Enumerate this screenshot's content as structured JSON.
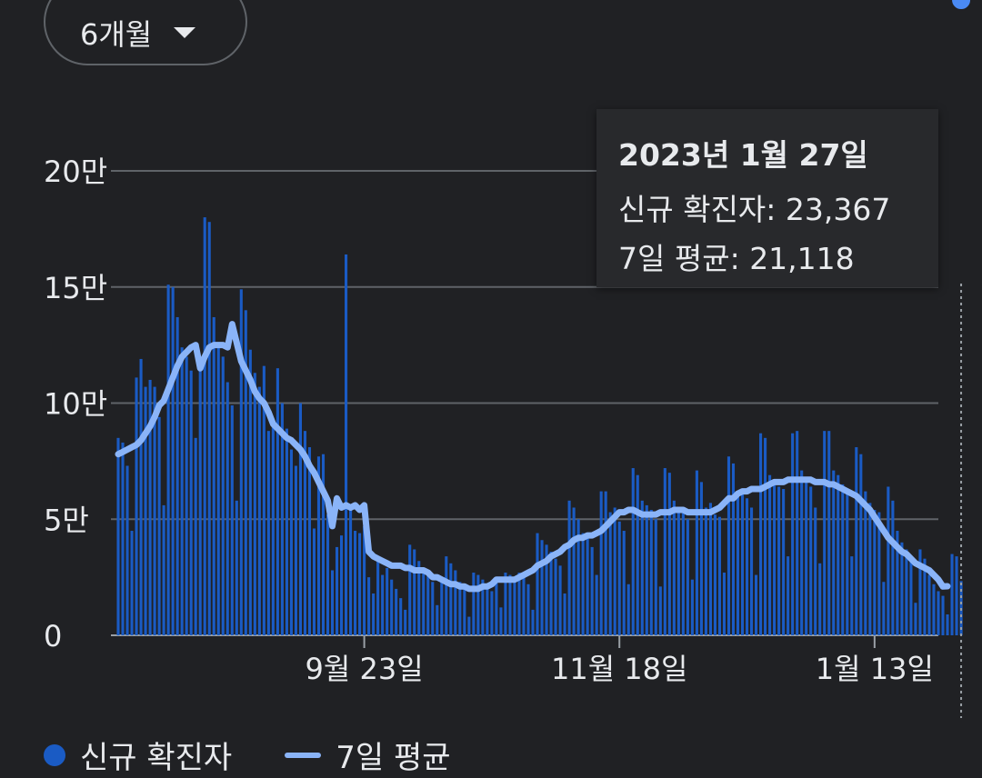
{
  "range_selector": {
    "label": "6개월"
  },
  "tooltip": {
    "date": "2023년 1월 27일",
    "cases_label": "신규 확진자: ",
    "cases_value": "23,367",
    "avg_label": "7일 평균: ",
    "avg_value": "21,118"
  },
  "legend": {
    "cases": "신규 확진자",
    "average": "7일 평균"
  },
  "colors": {
    "bar": "#1a5bc4",
    "line": "#8ab4f8",
    "grid": "#5f6368",
    "background": "#202124"
  },
  "chart_data": {
    "type": "bar",
    "start_date": "2022-07-31",
    "end_date": "2023-01-27",
    "ylim": [
      0,
      200000
    ],
    "y_ticks": [
      {
        "value": 0,
        "label": "0"
      },
      {
        "value": 50000,
        "label": "5만"
      },
      {
        "value": 100000,
        "label": "10만"
      },
      {
        "value": 150000,
        "label": "15만"
      },
      {
        "value": 200000,
        "label": "20만"
      }
    ],
    "x_ticks": [
      {
        "date": "2022-09-23",
        "label": "9월 23일"
      },
      {
        "date": "2022-11-18",
        "label": "11월 18일"
      },
      {
        "date": "2023-01-13",
        "label": "1월 13일"
      }
    ],
    "series": [
      {
        "name": "신규 확진자",
        "type": "bar",
        "values": [
          85000,
          83000,
          73000,
          45000,
          111000,
          119000,
          107000,
          110000,
          107000,
          94000,
          56000,
          151000,
          150000,
          137000,
          124000,
          120000,
          114000,
          85000,
          119000,
          180000,
          178000,
          137000,
          126000,
          120000,
          109000,
          99000,
          58000,
          149000,
          140000,
          123000,
          113000,
          107000,
          116000,
          88000,
          90000,
          115000,
          100000,
          89000,
          80000,
          73000,
          100000,
          88000,
          81000,
          46000,
          77000,
          78000,
          52000,
          28000,
          38000,
          43000,
          164000,
          56000,
          45000,
          44000,
          47000,
          25000,
          18000,
          33000,
          26000,
          29000,
          24000,
          20000,
          16000,
          11000,
          39000,
          37000,
          32000,
          27000,
          27000,
          23000,
          13000,
          23000,
          34000,
          31000,
          28000,
          23000,
          21000,
          8000,
          27000,
          26000,
          24000,
          21000,
          19000,
          25000,
          12000,
          27000,
          26000,
          25000,
          27000,
          27000,
          22000,
          11000,
          44000,
          41000,
          39000,
          36000,
          33000,
          30000,
          18000,
          58000,
          55000,
          50000,
          44000,
          42000,
          38000,
          26000,
          62000,
          62000,
          53000,
          55000,
          49000,
          45000,
          22000,
          72000,
          69000,
          58000,
          56000,
          54000,
          50000,
          21000,
          72000,
          70000,
          58000,
          53000,
          55000,
          50000,
          24000,
          71000,
          66000,
          55000,
          57000,
          52000,
          51000,
          27000,
          77000,
          74000,
          62000,
          61000,
          59000,
          55000,
          26000,
          87000,
          85000,
          69000,
          67000,
          64000,
          63000,
          34000,
          87000,
          88000,
          71000,
          66000,
          64000,
          55000,
          31000,
          88000,
          88000,
          71000,
          69000,
          65000,
          63000,
          34000,
          81000,
          78000,
          62000,
          57000,
          54000,
          53000,
          23000,
          64000,
          58000,
          45000,
          40000,
          37000,
          34000,
          14000,
          37000,
          33000,
          26000,
          22000,
          19000,
          17000,
          9000,
          35000,
          34000,
          23367
        ]
      },
      {
        "name": "7일 평균",
        "type": "line",
        "values": [
          78000,
          79000,
          80000,
          81000,
          82000,
          84000,
          87000,
          90000,
          94000,
          99000,
          101000,
          106000,
          111000,
          116000,
          120000,
          122000,
          124000,
          125000,
          115000,
          120000,
          124000,
          125000,
          125000,
          125000,
          124000,
          134000,
          126000,
          118000,
          114000,
          110000,
          105000,
          102000,
          100000,
          96000,
          91000,
          89000,
          87000,
          85000,
          84000,
          82000,
          80000,
          77000,
          73000,
          70000,
          66000,
          62000,
          58000,
          47000,
          59000,
          55000,
          56000,
          55000,
          56000,
          54000,
          56000,
          36000,
          34000,
          33000,
          32000,
          31000,
          30000,
          30000,
          30000,
          29000,
          29000,
          28000,
          28000,
          28000,
          27000,
          25000,
          25000,
          24000,
          23000,
          22000,
          22000,
          21000,
          21000,
          20000,
          20000,
          20000,
          21000,
          21000,
          22000,
          24000,
          24000,
          24000,
          24000,
          24000,
          25000,
          26000,
          27000,
          28000,
          30000,
          31000,
          32000,
          34000,
          35000,
          36000,
          38000,
          39000,
          41000,
          42000,
          42000,
          43000,
          43000,
          44000,
          45000,
          47000,
          49000,
          51000,
          53000,
          53000,
          54000,
          54000,
          53000,
          52000,
          52000,
          52000,
          52000,
          53000,
          53000,
          53000,
          54000,
          54000,
          54000,
          53000,
          53000,
          53000,
          53000,
          53000,
          53000,
          54000,
          55000,
          57000,
          59000,
          59000,
          61000,
          62000,
          62000,
          63000,
          63000,
          63000,
          64000,
          65000,
          66000,
          66000,
          66000,
          67000,
          67000,
          67000,
          67000,
          67000,
          67000,
          66000,
          66000,
          66000,
          65000,
          65000,
          64000,
          63000,
          62000,
          61000,
          60000,
          58000,
          56000,
          54000,
          51000,
          48000,
          45000,
          42000,
          40000,
          38000,
          36000,
          35000,
          33000,
          31000,
          30000,
          29000,
          28000,
          26000,
          24000,
          21000,
          21118
        ]
      }
    ]
  }
}
